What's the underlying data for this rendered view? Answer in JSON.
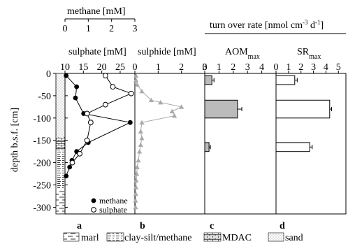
{
  "chart_data": [
    {
      "id": "a",
      "type": "line",
      "panel_label": "a",
      "top_axis": {
        "label": "methane [mM]",
        "ticks": [
          "0",
          "1",
          "2",
          "3"
        ],
        "range": [
          0,
          3
        ]
      },
      "bottom_axis": {
        "label": "sulphate [mM]",
        "ticks": [
          "10",
          "15",
          "20",
          "25"
        ],
        "range": [
          10,
          29
        ]
      },
      "ylabel": "depth b.s.f. [cm]",
      "yticks": [
        "0",
        "-50",
        "-100",
        "-150",
        "-200",
        "-250",
        "-300"
      ],
      "ylim": [
        -315,
        0
      ],
      "legend": {
        "placement": "bottom-right",
        "entries": [
          "methane",
          "sulphate"
        ]
      },
      "series": [
        {
          "name": "methane",
          "axis": "top",
          "marker": "filled-circle",
          "points": [
            [
              0.05,
              -5
            ],
            [
              0.5,
              -30
            ],
            [
              0.45,
              -55
            ],
            [
              0.8,
              -90
            ],
            [
              2.8,
              -110
            ],
            [
              1.0,
              -155
            ],
            [
              0.5,
              -175
            ],
            [
              0.3,
              -195
            ],
            [
              0.2,
              -210
            ],
            [
              0.05,
              -230
            ]
          ]
        },
        {
          "name": "sulphate",
          "axis": "bottom",
          "marker": "open-circle",
          "points": [
            [
              21,
              -5
            ],
            [
              23,
              -30
            ],
            [
              28,
              -45
            ],
            [
              21,
              -70
            ],
            [
              16,
              -90
            ],
            [
              17,
              -110
            ],
            [
              16,
              -150
            ],
            [
              14,
              -180
            ],
            [
              12,
              -200
            ]
          ]
        }
      ]
    },
    {
      "id": "b",
      "type": "line",
      "panel_label": "b",
      "top_axis": {
        "label": "sulphide [mM]",
        "ticks": [
          "0",
          "1",
          "2",
          "3"
        ],
        "range": [
          0,
          3
        ]
      },
      "ylim": [
        -315,
        0
      ],
      "series": [
        {
          "name": "sulphide",
          "marker": "triangle",
          "color": "#aaaaaa",
          "points": [
            [
              0.05,
              -5
            ],
            [
              0.05,
              -15
            ],
            [
              0.1,
              -25
            ],
            [
              0.3,
              -40
            ],
            [
              0.7,
              -60
            ],
            [
              1.1,
              -65
            ],
            [
              2.0,
              -75
            ],
            [
              1.6,
              -85
            ],
            [
              1.7,
              -95
            ],
            [
              0.3,
              -110
            ],
            [
              0.25,
              -130
            ],
            [
              0.3,
              -145
            ],
            [
              0.25,
              -160
            ],
            [
              0.2,
              -175
            ],
            [
              0.15,
              -195
            ],
            [
              0.1,
              -210
            ],
            [
              0.08,
              -225
            ],
            [
              0.06,
              -240
            ],
            [
              0.05,
              -255
            ],
            [
              0.04,
              -270
            ],
            [
              0.03,
              -285
            ],
            [
              0.03,
              -300
            ]
          ]
        }
      ]
    },
    {
      "id": "c",
      "type": "bar",
      "panel_label": "c",
      "top_axis": {
        "label": "AOMmax",
        "label_main": "AOM",
        "label_sub": "max",
        "ticks": [
          "0",
          "1",
          "2",
          "3",
          "4"
        ],
        "range": [
          0,
          5
        ]
      },
      "ylim": [
        -315,
        0
      ],
      "bars": [
        {
          "depth_top": -5,
          "depth_bottom": -25,
          "value": 0.5,
          "error": 0.15
        },
        {
          "depth_top": -60,
          "depth_bottom": -100,
          "value": 2.3,
          "error": 0.3
        },
        {
          "depth_top": -155,
          "depth_bottom": -175,
          "value": 0.3,
          "error": 0.1
        }
      ],
      "bar_color": "#bbbbbb"
    },
    {
      "id": "d",
      "type": "bar",
      "panel_label": "d",
      "top_axis": {
        "label": "SRmax",
        "label_main": "SR",
        "label_sub": "max",
        "ticks": [
          "0",
          "1",
          "2",
          "3",
          "4",
          "5"
        ],
        "range": [
          0,
          5.6
        ]
      },
      "ylim": [
        -315,
        0
      ],
      "bars": [
        {
          "depth_top": -5,
          "depth_bottom": -25,
          "value": 1.5,
          "error": 0.2
        },
        {
          "depth_top": -60,
          "depth_bottom": -100,
          "value": 4.3,
          "error": 0.15
        },
        {
          "depth_top": -155,
          "depth_bottom": -175,
          "value": 2.7,
          "error": 0.2
        }
      ],
      "bar_color": "#ffffff"
    }
  ],
  "turnover_header": {
    "main": "turn over rate [nmol cm",
    "sup1": "-3",
    "mid": " d",
    "sup2": "-1",
    "end": "]"
  },
  "lithology_legend": [
    "marl",
    "clay-silt/methane",
    "MDAC",
    "sand"
  ]
}
